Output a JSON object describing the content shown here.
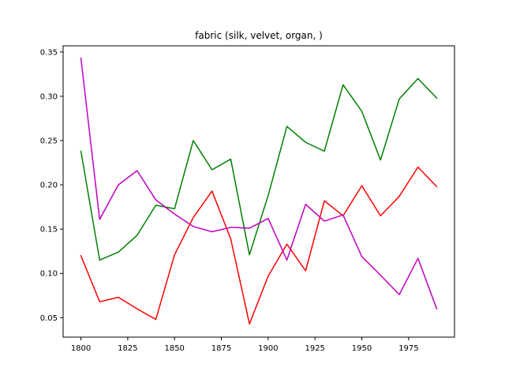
{
  "chart_data": {
    "type": "line",
    "title": "fabric (silk, velvet, organ, )",
    "xlabel": "",
    "ylabel": "",
    "xlim": [
      1790.5,
      1999.5
    ],
    "ylim": [
      0.028,
      0.357
    ],
    "x_ticks": [
      1800,
      1825,
      1850,
      1875,
      1900,
      1925,
      1950,
      1975
    ],
    "x_tick_labels": [
      "1800",
      "1825",
      "1850",
      "1875",
      "1900",
      "1925",
      "1950",
      "1975"
    ],
    "y_ticks": [
      0.05,
      0.1,
      0.15,
      0.2,
      0.25,
      0.3,
      0.35
    ],
    "y_tick_labels": [
      "0.05",
      "0.10",
      "0.15",
      "0.20",
      "0.25",
      "0.30",
      "0.35"
    ],
    "grid": false,
    "legend": "none",
    "x": [
      1800,
      1810,
      1820,
      1830,
      1840,
      1850,
      1860,
      1870,
      1880,
      1890,
      1900,
      1910,
      1920,
      1930,
      1940,
      1950,
      1960,
      1970,
      1980,
      1990
    ],
    "series": [
      {
        "color": "#ff0000",
        "values": [
          0.12,
          0.068,
          0.073,
          0.06,
          0.048,
          0.121,
          0.163,
          0.193,
          0.139,
          0.043,
          0.097,
          0.133,
          0.103,
          0.182,
          0.165,
          0.199,
          0.165,
          0.187,
          0.22,
          0.198
        ]
      },
      {
        "color": "#008000",
        "values": [
          0.238,
          0.115,
          0.124,
          0.143,
          0.177,
          0.173,
          0.25,
          0.217,
          0.229,
          0.121,
          0.188,
          0.266,
          0.248,
          0.238,
          0.313,
          0.283,
          0.228,
          0.297,
          0.32,
          0.298
        ]
      },
      {
        "color": "#c000c0",
        "values": [
          0.343,
          0.161,
          0.2,
          0.216,
          0.183,
          0.167,
          0.153,
          0.147,
          0.152,
          0.151,
          0.162,
          0.115,
          0.178,
          0.159,
          0.166,
          0.119,
          0.098,
          0.076,
          0.117,
          0.06
        ]
      }
    ]
  }
}
